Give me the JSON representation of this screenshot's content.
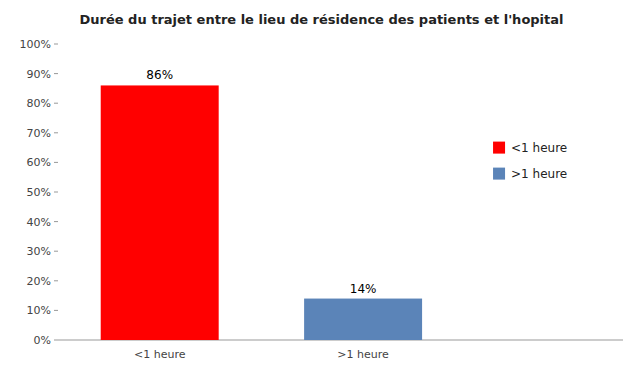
{
  "chart_data": {
    "type": "bar",
    "title": "Durée du trajet entre le lieu de résidence des patients et l'hopital",
    "categories": [
      "<1 heure",
      ">1 heure"
    ],
    "values": [
      86,
      14
    ],
    "value_labels": [
      "86%",
      "14%"
    ],
    "colors": [
      "#ff0000",
      "#5b84b8"
    ],
    "ylim": [
      0,
      100
    ],
    "yticks": [
      {
        "value": 0,
        "label": "0%"
      },
      {
        "value": 10,
        "label": "10%"
      },
      {
        "value": 20,
        "label": "20%"
      },
      {
        "value": 30,
        "label": "30%"
      },
      {
        "value": 40,
        "label": "40%"
      },
      {
        "value": 50,
        "label": "50%"
      },
      {
        "value": 60,
        "label": "60%"
      },
      {
        "value": 70,
        "label": "70%"
      },
      {
        "value": 80,
        "label": "80%"
      },
      {
        "value": 90,
        "label": "90%"
      },
      {
        "value": 100,
        "label": "100%"
      }
    ],
    "data_labels": true,
    "legend": "right",
    "grid": false
  }
}
